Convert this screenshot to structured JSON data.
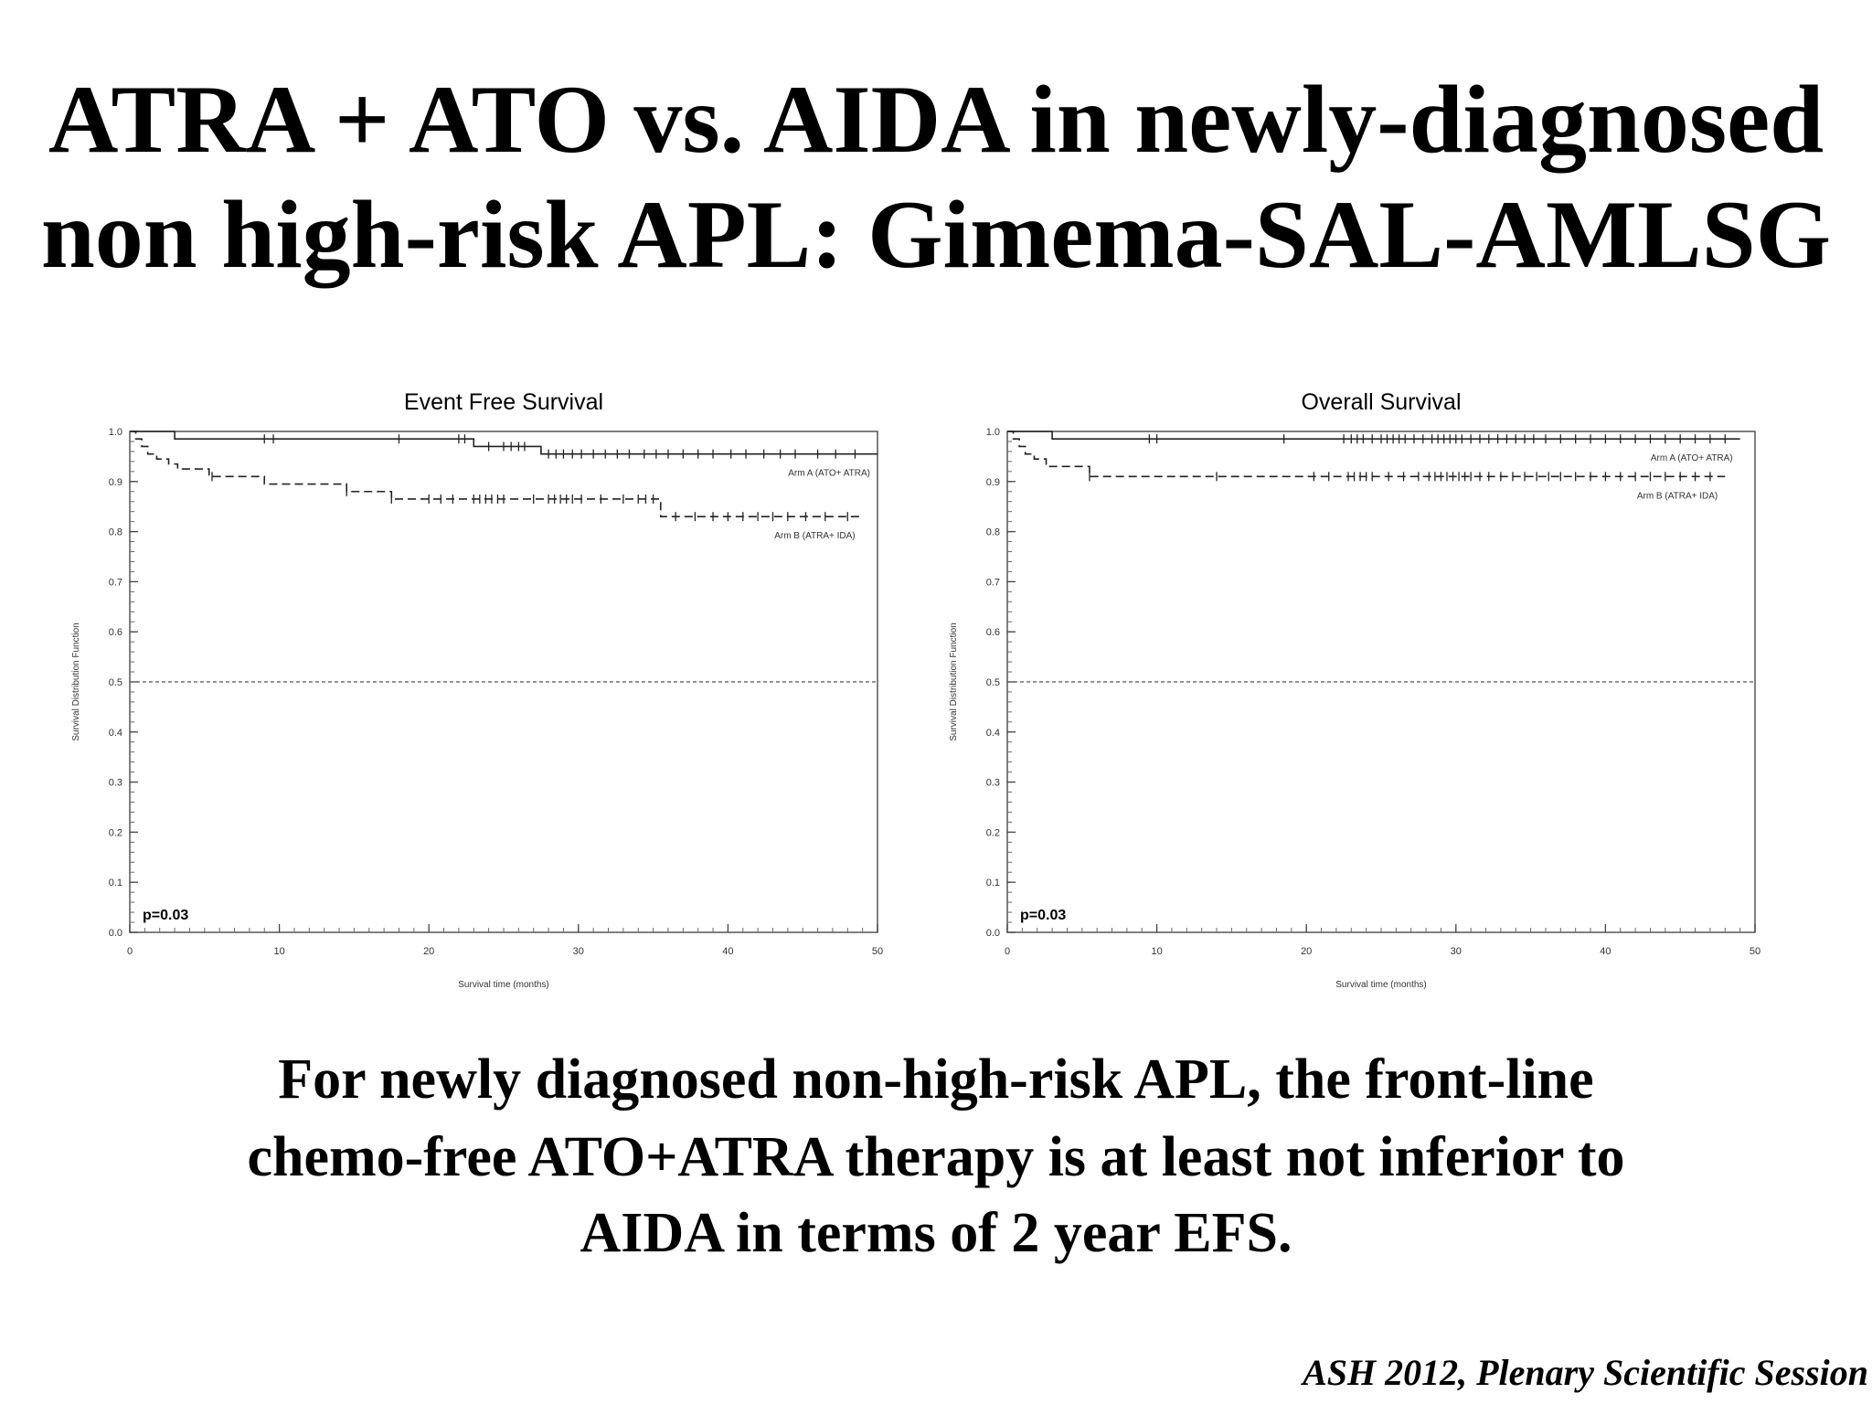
{
  "title": {
    "line1": "ATRA + ATO vs. AIDA in newly-diagnosed",
    "line2": "non high-risk APL: Gimema-SAL-AMLSG"
  },
  "conclusion": {
    "line1": "For newly diagnosed non-high-risk APL, the front-line",
    "line2": "chemo-free ATO+ATRA therapy is at least not inferior to",
    "line3": "AIDA in terms of 2 year EFS."
  },
  "footer": "ASH 2012, Plenary Scientific Session",
  "colors": {
    "line": "#222222",
    "text": "#000000",
    "background": "#ffffff"
  },
  "chart_data": [
    {
      "type": "line",
      "title": "Event Free Survival",
      "xlabel": "Survival time (months)",
      "ylabel": "Survival Distribution Function",
      "xlim": [
        0,
        50
      ],
      "ylim": [
        0,
        1.0
      ],
      "x_ticks": [
        0,
        10,
        20,
        30,
        40,
        50
      ],
      "y_ticks": [
        0.0,
        0.1,
        0.2,
        0.3,
        0.4,
        0.5,
        0.6,
        0.7,
        0.8,
        0.9,
        1.0
      ],
      "y_tick_labels": [
        "0.0",
        "0.1",
        "0.2",
        "0.3",
        "0.4",
        "0.5",
        "0.6",
        "0.7",
        "0.8",
        "0.9",
        "1.0"
      ],
      "reference_line": 0.5,
      "annotation": "p=0.03",
      "grid": false,
      "series": [
        {
          "name": "Arm A (ATO+ ATRA)",
          "style": "solid",
          "x": [
            0,
            3,
            22.5,
            23,
            27.5,
            50
          ],
          "y": [
            1.0,
            0.985,
            0.985,
            0.97,
            0.955,
            0.955
          ],
          "censored_x": [
            9,
            9.6,
            18,
            22,
            22.4,
            24,
            25,
            25.5,
            26,
            26.4,
            28,
            28.5,
            29,
            29.6,
            30.2,
            31,
            31.8,
            32.6,
            33.4,
            34.4,
            35.2,
            36,
            37,
            38,
            39,
            40.2,
            41.2,
            42.4,
            43.5,
            44.5,
            46,
            47.2,
            48.5
          ]
        },
        {
          "name": "Arm B (ATRA+ IDA)",
          "style": "dashed",
          "x": [
            0,
            0.4,
            0.8,
            1.2,
            1.8,
            2.6,
            3.2,
            5.3,
            9,
            14.5,
            17.5,
            35.5,
            49
          ],
          "y": [
            1.0,
            0.985,
            0.97,
            0.955,
            0.945,
            0.935,
            0.925,
            0.91,
            0.895,
            0.88,
            0.865,
            0.83,
            0.83
          ],
          "censored_x": [
            5.5,
            14.5,
            17.5,
            20,
            20.8,
            21.6,
            23,
            23.4,
            23.8,
            24.2,
            24.6,
            25,
            27,
            28,
            28.4,
            28.8,
            29.2,
            29.6,
            30.2,
            31.5,
            33,
            34,
            34.5,
            35,
            36.5,
            37.8,
            39,
            40,
            41,
            42,
            43,
            44,
            45.2,
            46.5,
            48
          ]
        }
      ]
    },
    {
      "type": "line",
      "title": "Overall Survival",
      "xlabel": "Survival time (months)",
      "ylabel": "Survival Distribution Function",
      "xlim": [
        0,
        50
      ],
      "ylim": [
        0,
        1.0
      ],
      "x_ticks": [
        0,
        10,
        20,
        30,
        40,
        50
      ],
      "y_ticks": [
        0.0,
        0.1,
        0.2,
        0.3,
        0.4,
        0.5,
        0.6,
        0.7,
        0.8,
        0.9,
        1.0
      ],
      "y_tick_labels": [
        "0.0",
        "0.1",
        "0.2",
        "0.3",
        "0.4",
        "0.5",
        "0.6",
        "0.7",
        "0.8",
        "0.9",
        "1.0"
      ],
      "reference_line": 0.5,
      "annotation": "p=0.03",
      "grid": false,
      "series": [
        {
          "name": "Arm A (ATO+ ATRA)",
          "style": "solid",
          "x": [
            0,
            3,
            49
          ],
          "y": [
            1.0,
            0.985,
            0.985
          ],
          "censored_x": [
            9.5,
            10,
            18.5,
            22.5,
            23,
            23.4,
            23.8,
            24.4,
            25,
            25.4,
            25.8,
            26.2,
            26.6,
            27.2,
            27.8,
            28.4,
            28.8,
            29.2,
            29.6,
            30,
            30.4,
            31,
            31.6,
            32.2,
            32.8,
            33.4,
            34,
            34.6,
            35.2,
            36,
            37,
            38,
            39,
            40,
            41,
            42,
            43,
            44,
            45,
            46,
            47,
            48
          ]
        },
        {
          "name": "Arm B (ATRA+ IDA)",
          "style": "dashed",
          "x": [
            0,
            0.4,
            0.8,
            1.2,
            1.8,
            2.6,
            5.5,
            48
          ],
          "y": [
            1.0,
            0.985,
            0.97,
            0.955,
            0.945,
            0.93,
            0.91,
            0.91
          ],
          "censored_x": [
            5.5,
            14,
            20.5,
            21.5,
            22.8,
            23.2,
            23.6,
            24,
            24.4,
            25.5,
            26.5,
            27.5,
            28.2,
            28.6,
            29,
            29.4,
            29.8,
            30.2,
            30.6,
            31,
            31.6,
            32.2,
            33,
            33.8,
            34.6,
            35.4,
            36.2,
            37,
            38,
            39,
            40,
            41,
            42,
            43,
            44,
            45,
            46,
            47
          ]
        }
      ]
    }
  ]
}
